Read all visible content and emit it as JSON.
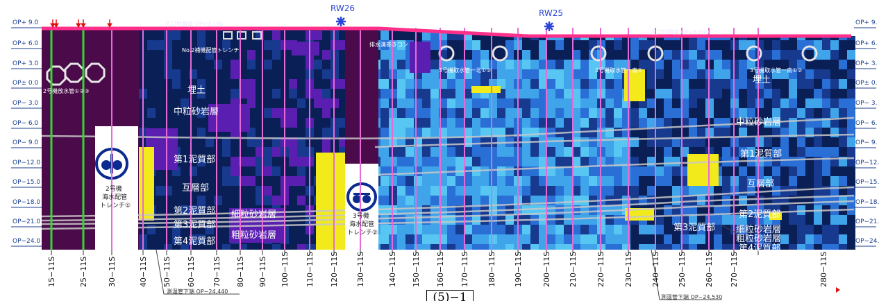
{
  "elevations": [
    "OP+ 9.0",
    "OP+ 6.0",
    "OP+ 3.0",
    "OP± 0.0",
    "OP− 3.0",
    "OP− 6.0",
    "OP− 9.0",
    "OP−12.0",
    "OP−15.0",
    "OP−18.0",
    "OP−21.0",
    "OP−24.0"
  ],
  "elevations_right": [
    "OP+ 9.",
    "OP+ 6.",
    "OP+ 3.",
    "OP± 0.",
    "OP− 3.",
    "OP− 6.",
    "OP− 9.",
    "OP−12.",
    "OP−15.",
    "OP−18.",
    "OP−21.",
    "OP−24."
  ],
  "stations": [
    "15−11S",
    "25−11S",
    "30−11S",
    "40−11S",
    "50−11S",
    "60−11S",
    "70−11S",
    "80−11S",
    "90−11S",
    "100−11S",
    "110−11S",
    "120−11S",
    "130−11S",
    "140−11S",
    "150−11S",
    "160−11S",
    "170−11S",
    "180−11S",
    "190−11S",
    "200−11S",
    "210−11S",
    "220−11S",
    "230−11S",
    "240−11S",
    "250−11S",
    "260−11S",
    "270−11S",
    "280−11S"
  ],
  "wells": {
    "rw26": "RW26",
    "rw25": "RW25"
  },
  "ground": {
    "left": "孔口地盤高 OP+9.190",
    "right": "孔口地盤高 OP+8.090"
  },
  "labels": {
    "trench_no2_top": "No.2補機配管トレンチ",
    "drain_concrete": "排水溝巻きコン",
    "pipe_no2": "2号機放水管①②③",
    "pipe_no3_n": "3号機取水管一北①②",
    "pipe_no3_m": "3号機取水管一南②",
    "pipe_no3_s": "3号機取水管一南①②",
    "trench_no2_a": "2号機",
    "trench_no2_b": "海水配管",
    "trench_no2_c": "トレンチ①",
    "trench_no3_a": "3号機",
    "trench_no3_b": "海水配管",
    "trench_no3_c": "トレンチ②"
  },
  "layers_left": {
    "umetsuchi": "埋土",
    "chuuryuu": "中粒砂岩層",
    "dei1": "第1泥質部",
    "gosou": "互層部",
    "dei2": "第2泥質部",
    "dei3": "第3泥質部",
    "dei4": "第4泥質部",
    "hosoryuu": "細粒砂岩層",
    "soryuu": "粗粒砂岩層"
  },
  "layers_right": {
    "umetsuchi": "埋土",
    "chuuryuu": "中粒砂岩層",
    "dei1": "第1泥質部",
    "gosou": "互層部",
    "dei2": "第2泥質部",
    "dei3": "第3泥質部",
    "hosoryuu": "細粒砂岩層",
    "soryuu": "粗粒砂岩層",
    "dei4": "第4泥質部"
  },
  "notes": {
    "left": "測温管下端 OP−24,440",
    "right": "測温管下端 OP−24,530"
  },
  "page_number": "(5)−1",
  "colors": {
    "deep_navy": "#0b1f57",
    "navy": "#173a8f",
    "blue": "#2a6fd6",
    "light_blue": "#3fa4ea",
    "cyan": "#57c6f2",
    "purple": "#5a1fb0",
    "maroon": "#4b0a4a",
    "yellow": "#f2ea1a",
    "pink_line": "#ff2f8a",
    "green_line": "#31d82f",
    "well_marker": "#2b44d8"
  }
}
